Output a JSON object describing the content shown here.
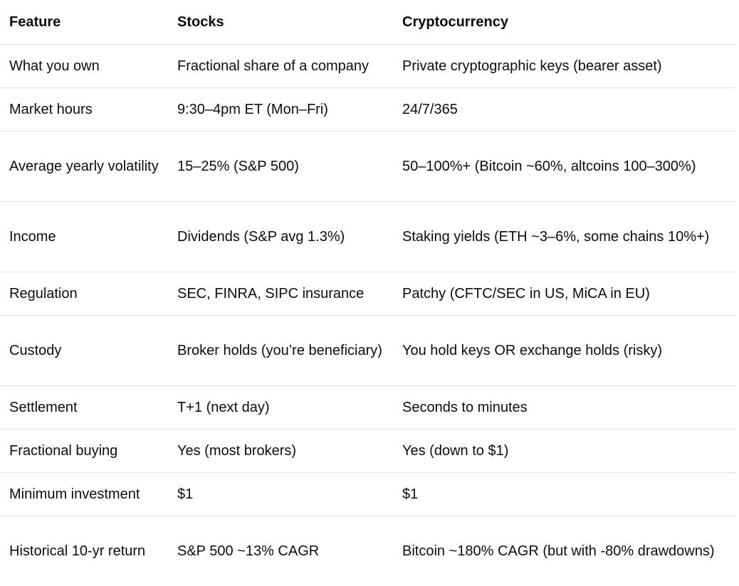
{
  "table": {
    "headers": [
      "Feature",
      "Stocks",
      "Cryptocurrency"
    ],
    "rows": [
      [
        "What you own",
        "Fractional share of a company",
        "Private cryptographic keys (bearer asset)"
      ],
      [
        "Market hours",
        "9:30–4pm ET (Mon–Fri)",
        "24/7/365"
      ],
      [
        "Average yearly volatility",
        "15–25% (S&P 500)",
        "50–100%+ (Bitcoin ~60%, altcoins 100–300%)"
      ],
      [
        "Income",
        "Dividends (S&P avg 1.3%)",
        "Staking yields (ETH ~3–6%, some chains 10%+)"
      ],
      [
        "Regulation",
        "SEC, FINRA, SIPC insurance",
        "Patchy (CFTC/SEC in US, MiCA in EU)"
      ],
      [
        "Custody",
        "Broker holds (you’re beneficiary)",
        "You hold keys OR exchange holds (risky)"
      ],
      [
        "Settlement",
        "T+1 (next day)",
        "Seconds to minutes"
      ],
      [
        "Fractional buying",
        "Yes (most brokers)",
        "Yes (down to $1)"
      ],
      [
        "Minimum investment",
        "$1",
        "$1"
      ],
      [
        "Historical 10-yr return",
        "S&P 500 ~13% CAGR",
        "Bitcoin ~180% CAGR (but with -80% drawdowns)"
      ]
    ]
  }
}
